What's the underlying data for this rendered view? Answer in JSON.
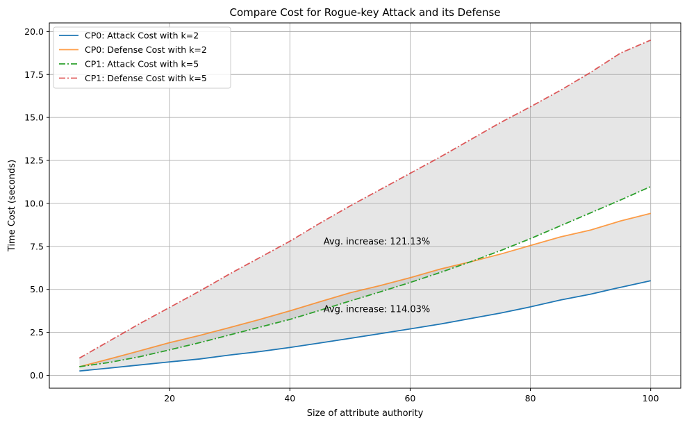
{
  "chart_data": {
    "type": "line",
    "title": "Compare Cost for Rogue-key Attack and its Defense",
    "xlabel": "Size of attribute authority",
    "ylabel": "Time Cost (seconds)",
    "xlim": [
      0,
      105
    ],
    "ylim": [
      -0.75,
      20.5
    ],
    "xticks": [
      20,
      40,
      60,
      80,
      100
    ],
    "yticks": [
      0.0,
      2.5,
      5.0,
      7.5,
      10.0,
      12.5,
      15.0,
      17.5,
      20.0
    ],
    "xtick_labels": [
      "20",
      "40",
      "60",
      "80",
      "100"
    ],
    "ytick_labels": [
      "0.0",
      "2.5",
      "5.0",
      "7.5",
      "10.0",
      "12.5",
      "15.0",
      "17.5",
      "20.0"
    ],
    "grid": true,
    "legend_position": "top-left",
    "x": [
      5,
      10,
      15,
      20,
      25,
      30,
      35,
      40,
      45,
      50,
      55,
      60,
      65,
      70,
      75,
      80,
      85,
      90,
      95,
      100
    ],
    "series": [
      {
        "name": "CP0: Attack Cost with k=2",
        "color": "#1f77b4",
        "style": "solid",
        "values": [
          0.25,
          0.42,
          0.6,
          0.78,
          0.95,
          1.18,
          1.38,
          1.62,
          1.88,
          2.15,
          2.42,
          2.7,
          2.98,
          3.3,
          3.62,
          3.98,
          4.38,
          4.72,
          5.12,
          5.5
        ]
      },
      {
        "name": "CP0: Defense Cost with k=2",
        "color": "#ff7f0e",
        "style": "solid",
        "values": [
          0.5,
          0.95,
          1.42,
          1.9,
          2.32,
          2.78,
          3.25,
          3.75,
          4.28,
          4.8,
          5.22,
          5.68,
          6.18,
          6.6,
          7.05,
          7.55,
          8.05,
          8.45,
          8.98,
          9.42
        ]
      },
      {
        "name": "CP1: Attack Cost with k=5",
        "color": "#2ca02c",
        "style": "dashdot",
        "values": [
          0.5,
          0.75,
          1.08,
          1.48,
          1.9,
          2.35,
          2.8,
          3.25,
          3.78,
          4.32,
          4.85,
          5.4,
          5.98,
          6.6,
          7.25,
          7.95,
          8.7,
          9.45,
          10.2,
          10.98
        ]
      },
      {
        "name": "CP1: Defense Cost with k=5",
        "color": "#d62728",
        "style": "dashdot",
        "values": [
          1.0,
          2.0,
          3.0,
          3.95,
          4.9,
          5.9,
          6.85,
          7.8,
          8.85,
          9.85,
          10.8,
          11.75,
          12.7,
          13.7,
          14.7,
          15.62,
          16.58,
          17.62,
          18.75,
          19.5
        ]
      }
    ],
    "fill_between": [
      {
        "lower_series": 0,
        "upper_series": 1,
        "color": "#808080",
        "alpha": 0.2
      },
      {
        "lower_series": 2,
        "upper_series": 3,
        "color": "#808080",
        "alpha": 0.2
      }
    ],
    "annotations": [
      {
        "text": "Avg. increase: 121.13%",
        "x": 45.6,
        "y": 7.8
      },
      {
        "text": "Avg. increase: 114.03%",
        "x": 45.6,
        "y": 3.85
      }
    ]
  }
}
